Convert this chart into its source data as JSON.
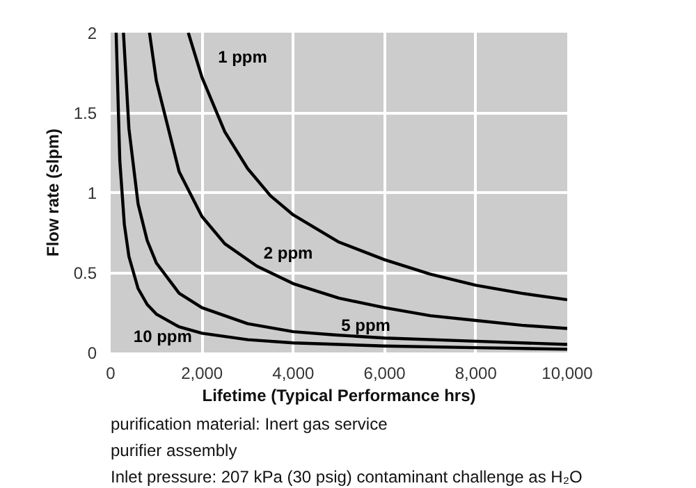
{
  "chart_data": {
    "type": "line",
    "xlabel": "Lifetime (Typical Performance hrs)",
    "ylabel": "Flow rate (slpm)",
    "xlim": [
      0,
      10000
    ],
    "ylim": [
      0,
      2
    ],
    "xticks": [
      {
        "value": 0,
        "label": "0"
      },
      {
        "value": 2000,
        "label": "2,000"
      },
      {
        "value": 4000,
        "label": "4,000"
      },
      {
        "value": 6000,
        "label": "6,000"
      },
      {
        "value": 8000,
        "label": "8,000"
      },
      {
        "value": 10000,
        "label": "10,000"
      }
    ],
    "yticks": [
      0,
      0.5,
      1,
      1.5,
      2
    ],
    "grid": true,
    "series": [
      {
        "name": "1 ppm",
        "color": "#000000",
        "x": [
          1700,
          2000,
          2500,
          3000,
          3500,
          4000,
          5000,
          6000,
          7000,
          8000,
          9000,
          10000
        ],
        "values": [
          2,
          1.72,
          1.38,
          1.15,
          0.98,
          0.86,
          0.69,
          0.58,
          0.49,
          0.42,
          0.37,
          0.33
        ]
      },
      {
        "name": "2 ppm",
        "color": "#000000",
        "x": [
          850,
          1000,
          1500,
          2000,
          2500,
          3200,
          4000,
          5000,
          6000,
          7000,
          8000,
          9000,
          10000
        ],
        "values": [
          2,
          1.7,
          1.13,
          0.85,
          0.68,
          0.54,
          0.43,
          0.34,
          0.28,
          0.23,
          0.2,
          0.17,
          0.15
        ]
      },
      {
        "name": "5 ppm",
        "color": "#000000",
        "x": [
          280,
          400,
          600,
          800,
          1000,
          1500,
          2000,
          3000,
          4000,
          4900,
          6000,
          8000,
          10000
        ],
        "values": [
          2,
          1.4,
          0.93,
          0.7,
          0.56,
          0.37,
          0.28,
          0.18,
          0.13,
          0.11,
          0.09,
          0.07,
          0.05
        ]
      },
      {
        "name": "10 ppm",
        "color": "#000000",
        "x": [
          120,
          200,
          300,
          400,
          600,
          800,
          1000,
          1500,
          2000,
          3000,
          4000,
          6000,
          8000,
          10000
        ],
        "values": [
          2,
          1.2,
          0.8,
          0.6,
          0.4,
          0.3,
          0.24,
          0.16,
          0.12,
          0.08,
          0.06,
          0.04,
          0.03,
          0.02
        ]
      }
    ],
    "annotations": [
      "purification material: Inert gas service",
      "purifier assembly",
      "Inlet pressure: 207 kPa (30 psig) contaminant challenge as H₂O"
    ]
  }
}
